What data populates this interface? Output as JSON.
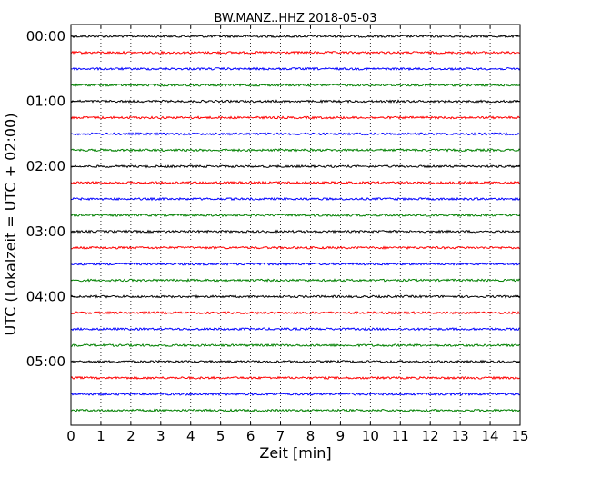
{
  "chart_data": {
    "type": "line",
    "title": "BW.MANZ..HHZ 2018-05-03",
    "xlabel": "Zeit  [min]",
    "ylabel": "UTC (Lokalzeit = UTC + 02:00)",
    "xlim": [
      0,
      15
    ],
    "x_ticks": [
      "0",
      "1",
      "2",
      "3",
      "4",
      "5",
      "6",
      "7",
      "8",
      "9",
      "10",
      "11",
      "12",
      "13",
      "14",
      "15"
    ],
    "y_tick_labels": [
      "00:00",
      "01:00",
      "02:00",
      "03:00",
      "04:00",
      "05:00"
    ],
    "grid": "vertical dotted",
    "traces_per_hour": 4,
    "trace_colors": [
      "#000000",
      "#ff0000",
      "#0000ff",
      "#008000"
    ],
    "rows": [
      "00:00",
      "00:15",
      "00:30",
      "00:45",
      "01:00",
      "01:15",
      "01:30",
      "01:45",
      "02:00",
      "02:15",
      "02:30",
      "02:45",
      "03:00",
      "03:15",
      "03:30",
      "03:45",
      "04:00",
      "04:15",
      "04:30",
      "04:45",
      "05:00",
      "05:15",
      "05:30",
      "05:45"
    ]
  }
}
